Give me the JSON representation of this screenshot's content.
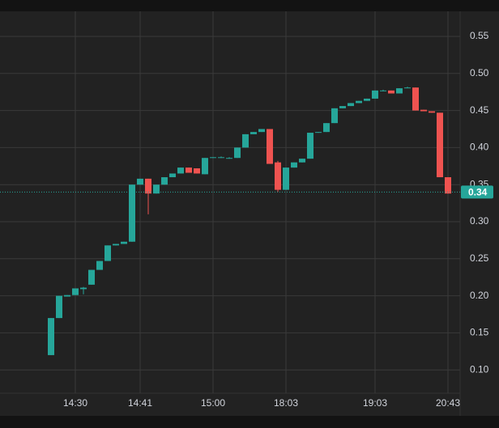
{
  "chart_data": {
    "type": "candlestick",
    "categories": [
      null,
      null,
      null,
      "14:30",
      null,
      null,
      null,
      null,
      null,
      null,
      null,
      "14:41",
      null,
      null,
      null,
      null,
      null,
      null,
      null,
      null,
      "15:00",
      null,
      null,
      null,
      null,
      null,
      null,
      null,
      null,
      "18:03",
      null,
      null,
      null,
      null,
      null,
      null,
      null,
      null,
      null,
      null,
      "19:03",
      null,
      null,
      null,
      null,
      null,
      null,
      null,
      null,
      "20:43"
    ],
    "open": [
      0.12,
      0.17,
      0.199,
      0.201,
      0.209,
      0.215,
      0.235,
      0.247,
      0.268,
      0.27,
      0.273,
      0.35,
      0.358,
      0.338,
      0.35,
      0.36,
      0.365,
      0.373,
      0.372,
      0.364,
      0.386,
      0.386,
      0.386,
      0.386,
      0.4,
      0.418,
      0.421,
      0.425,
      0.38,
      0.343,
      0.373,
      0.38,
      0.385,
      0.42,
      0.421,
      0.433,
      0.453,
      0.456,
      0.46,
      0.463,
      0.466,
      0.477,
      0.477,
      0.473,
      0.48,
      0.481,
      0.451,
      0.449,
      0.447,
      0.36
    ],
    "high": [
      0.17,
      0.2,
      0.201,
      0.21,
      0.212,
      0.235,
      0.247,
      0.268,
      0.27,
      0.273,
      0.35,
      0.358,
      0.358,
      0.35,
      0.36,
      0.365,
      0.373,
      0.373,
      0.372,
      0.386,
      0.387,
      0.388,
      0.387,
      0.4,
      0.418,
      0.421,
      0.425,
      0.425,
      0.382,
      0.373,
      0.38,
      0.385,
      0.42,
      0.421,
      0.433,
      0.453,
      0.456,
      0.46,
      0.463,
      0.466,
      0.477,
      0.478,
      0.477,
      0.48,
      0.482,
      0.481,
      0.451,
      0.449,
      0.447,
      0.36
    ],
    "low": [
      0.12,
      0.17,
      0.199,
      0.201,
      0.202,
      0.215,
      0.235,
      0.247,
      0.268,
      0.27,
      0.273,
      0.35,
      0.31,
      0.338,
      0.35,
      0.36,
      0.365,
      0.366,
      0.365,
      0.364,
      0.386,
      0.386,
      0.385,
      0.386,
      0.4,
      0.418,
      0.421,
      0.378,
      0.34,
      0.343,
      0.373,
      0.38,
      0.385,
      0.42,
      0.421,
      0.433,
      0.453,
      0.456,
      0.46,
      0.463,
      0.466,
      0.476,
      0.473,
      0.473,
      0.48,
      0.45,
      0.449,
      0.447,
      0.36,
      0.338
    ],
    "close": [
      0.17,
      0.2,
      0.201,
      0.21,
      0.211,
      0.235,
      0.247,
      0.268,
      0.27,
      0.273,
      0.35,
      0.358,
      0.338,
      0.35,
      0.36,
      0.365,
      0.373,
      0.366,
      0.365,
      0.386,
      0.387,
      0.387,
      0.386,
      0.4,
      0.418,
      0.421,
      0.425,
      0.378,
      0.343,
      0.373,
      0.38,
      0.385,
      0.42,
      0.421,
      0.433,
      0.453,
      0.456,
      0.46,
      0.463,
      0.466,
      0.477,
      0.477,
      0.473,
      0.48,
      0.481,
      0.45,
      0.449,
      0.447,
      0.36,
      0.338
    ],
    "up_color": "#26a69a",
    "down_color": "#ef5350",
    "last_price": 0.34,
    "ylim": [
      0.0686,
      0.5838
    ],
    "yticks": [
      {
        "value": 0.1,
        "label": "0.10"
      },
      0.15,
      {
        "value": 0.2,
        "label": "0.20"
      },
      0.25,
      {
        "value": 0.3,
        "label": "0.30"
      },
      0.35,
      {
        "value": 0.4,
        "label": "0.40"
      },
      0.45,
      {
        "value": 0.5,
        "label": "0.50"
      },
      0.55
    ],
    "grid": true
  }
}
